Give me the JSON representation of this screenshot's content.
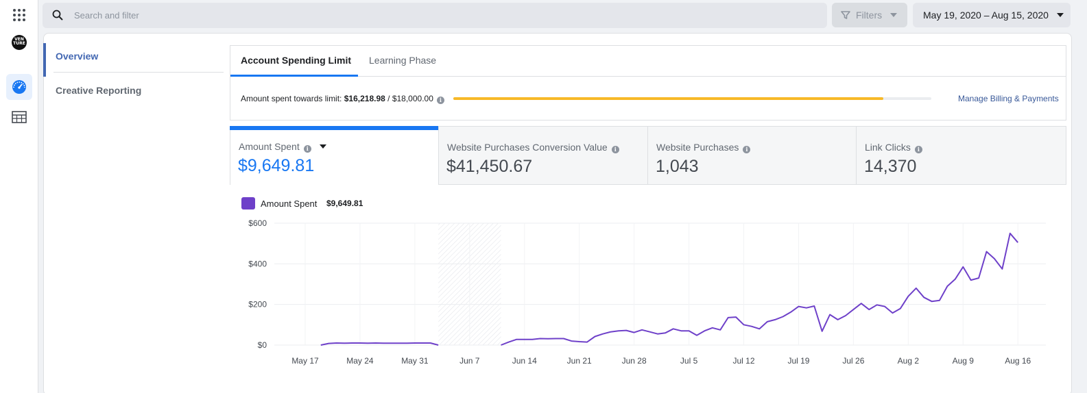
{
  "search": {
    "placeholder": "Search and filter"
  },
  "filters": {
    "label": "Filters"
  },
  "date_range": {
    "label": "May 19, 2020 – Aug 15, 2020"
  },
  "rail": {
    "logo_text_1": "VEN",
    "logo_text_2": "TURE"
  },
  "sidebar": {
    "items": [
      {
        "label": "Overview",
        "active": true
      },
      {
        "label": "Creative Reporting",
        "active": false
      }
    ]
  },
  "tabs": [
    {
      "label": "Account Spending Limit",
      "active": true
    },
    {
      "label": "Learning Phase",
      "active": false
    }
  ],
  "limit": {
    "prefix": "Amount spent towards limit: ",
    "spent": "$16,218.98",
    "separator": " / ",
    "limit": "$18,000.00",
    "progress_fraction": 0.9,
    "manage_link": "Manage Billing & Payments",
    "bar_color": "#f7b928"
  },
  "metrics": [
    {
      "label": "Amount Spent",
      "value": "$9,649.81",
      "active": true
    },
    {
      "label": "Website Purchases Conversion Value",
      "value": "$41,450.67",
      "active": false
    },
    {
      "label": "Website Purchases",
      "value": "1,043",
      "active": false
    },
    {
      "label": "Link Clicks",
      "value": "14,370",
      "active": false
    }
  ],
  "legend": {
    "label": "Amount Spent",
    "value": "$9,649.81",
    "color": "#6e40c9"
  },
  "colors": {
    "accent": "#1877f2",
    "nav_active": "#4267b2",
    "series": "#6e40c9"
  },
  "chart_data": {
    "type": "line",
    "title": "",
    "xlabel": "",
    "ylabel": "",
    "ylim": [
      0,
      600
    ],
    "y_ticks": [
      "$0",
      "$200",
      "$400",
      "$600"
    ],
    "x_tick_labels": [
      "May 17",
      "May 24",
      "May 31",
      "Jun 7",
      "Jun 14",
      "Jun 21",
      "Jun 28",
      "Jul 5",
      "Jul 12",
      "Jul 19",
      "Jul 26",
      "Aug 2",
      "Aug 9",
      "Aug 16"
    ],
    "x_tick_days": [
      0,
      7,
      14,
      21,
      28,
      35,
      42,
      49,
      56,
      63,
      70,
      77,
      84,
      91
    ],
    "no_data_band_days": [
      17,
      25
    ],
    "grid": true,
    "series": [
      {
        "name": "Amount Spent",
        "color": "#6e40c9",
        "segments": [
          [
            [
              2,
              0
            ],
            [
              3,
              8
            ],
            [
              4,
              10
            ],
            [
              5,
              9
            ],
            [
              6,
              10
            ],
            [
              7,
              10
            ],
            [
              8,
              9
            ],
            [
              9,
              10
            ],
            [
              10,
              9
            ],
            [
              11,
              9
            ],
            [
              12,
              9
            ],
            [
              13,
              9
            ],
            [
              14,
              10
            ],
            [
              15,
              10
            ],
            [
              16,
              10
            ],
            [
              17,
              0
            ]
          ],
          [
            [
              25,
              0
            ],
            [
              26,
              15
            ],
            [
              27,
              28
            ],
            [
              28,
              28
            ],
            [
              29,
              28
            ],
            [
              30,
              32
            ],
            [
              31,
              31
            ],
            [
              32,
              32
            ],
            [
              33,
              32
            ],
            [
              34,
              20
            ],
            [
              35,
              17
            ],
            [
              36,
              15
            ],
            [
              37,
              42
            ],
            [
              38,
              55
            ],
            [
              39,
              65
            ],
            [
              40,
              70
            ],
            [
              41,
              72
            ],
            [
              42,
              62
            ],
            [
              43,
              75
            ],
            [
              44,
              65
            ],
            [
              45,
              55
            ],
            [
              46,
              60
            ],
            [
              47,
              80
            ],
            [
              48,
              70
            ],
            [
              49,
              70
            ],
            [
              50,
              48
            ],
            [
              51,
              70
            ],
            [
              52,
              85
            ],
            [
              53,
              75
            ],
            [
              54,
              135
            ],
            [
              55,
              138
            ],
            [
              56,
              100
            ],
            [
              57,
              92
            ],
            [
              58,
              80
            ],
            [
              59,
              115
            ],
            [
              60,
              125
            ],
            [
              61,
              140
            ],
            [
              62,
              162
            ],
            [
              63,
              190
            ],
            [
              64,
              183
            ],
            [
              65,
              192
            ],
            [
              66,
              68
            ],
            [
              67,
              150
            ],
            [
              68,
              125
            ],
            [
              69,
              145
            ],
            [
              70,
              175
            ],
            [
              71,
              205
            ],
            [
              72,
              175
            ],
            [
              73,
              198
            ],
            [
              74,
              190
            ],
            [
              75,
              158
            ],
            [
              76,
              180
            ],
            [
              77,
              240
            ],
            [
              78,
              280
            ],
            [
              79,
              235
            ],
            [
              80,
              215
            ],
            [
              81,
              220
            ],
            [
              82,
              290
            ],
            [
              83,
              325
            ],
            [
              84,
              385
            ],
            [
              85,
              320
            ],
            [
              86,
              330
            ],
            [
              87,
              460
            ],
            [
              88,
              425
            ],
            [
              89,
              375
            ],
            [
              90,
              550
            ],
            [
              91,
              505
            ]
          ]
        ]
      }
    ]
  }
}
